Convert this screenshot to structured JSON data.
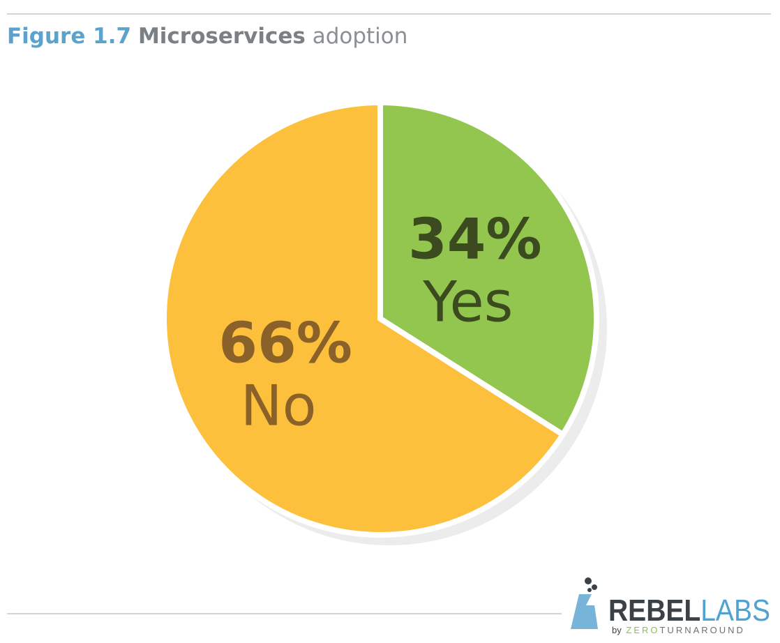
{
  "chart_data": {
    "type": "pie",
    "title_parts": [
      "Figure 1.7",
      "Microservices",
      "adoption"
    ],
    "categories": [
      "Yes",
      "No"
    ],
    "values": [
      34,
      66
    ],
    "value_labels": [
      "34%",
      "66%"
    ],
    "colors": [
      "#92c64e",
      "#fdc03d"
    ],
    "label_colors": [
      "#3b4a1f",
      "#8a6128"
    ]
  },
  "logo": {
    "name": [
      "REBEL",
      "LABS"
    ],
    "byline": [
      "by",
      "ZERO",
      "TURNAROUND"
    ]
  }
}
